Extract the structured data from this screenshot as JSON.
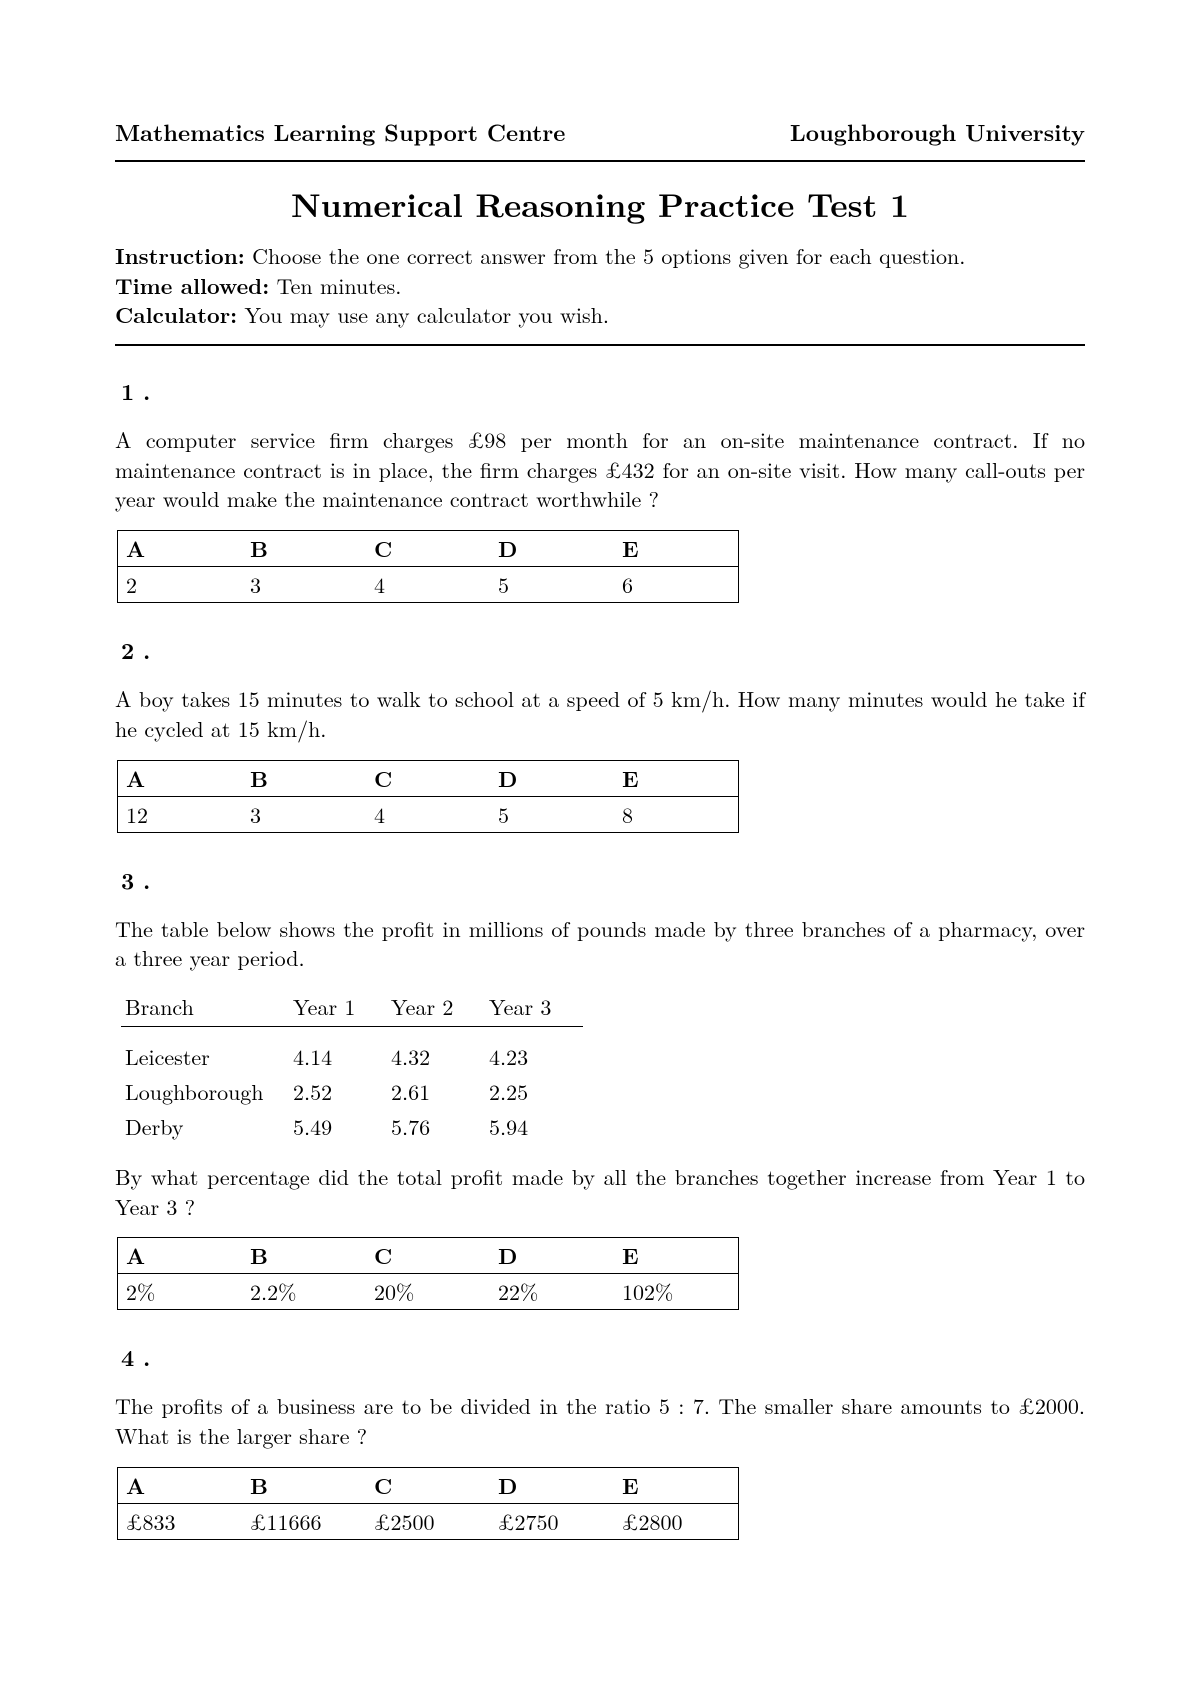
{
  "header": {
    "left": "Mathematics Learning Support Centre",
    "right": "Loughborough University"
  },
  "title": "Numerical Reasoning Practice Test 1",
  "instructions": {
    "instruction_label": "Instruction:",
    "instruction_text": "Choose the one correct answer from the 5 options given for each question.",
    "time_label": "Time allowed:",
    "time_text": "Ten minutes.",
    "calc_label": "Calculator:",
    "calc_text": "You may use any calculator you wish."
  },
  "option_headers": [
    "A",
    "B",
    "C",
    "D",
    "E"
  ],
  "questions": {
    "q1": {
      "number": "1  .",
      "text": "A computer service firm charges £98 per month for an on-site maintenance contract. If no maintenance contract is in place, the firm charges £432 for an on-site visit. How many call-outs per year would make the maintenance contract worthwhile ?",
      "options": [
        "2",
        "3",
        "4",
        "5",
        "6"
      ]
    },
    "q2": {
      "number": "2  .",
      "text": "A boy takes 15 minutes to walk to school at a speed of 5 km/h. How many minutes would he take if he cycled at 15 km/h.",
      "options": [
        "12",
        "3",
        "4",
        "5",
        "8"
      ]
    },
    "q3": {
      "number": "3  .",
      "text_a": "The table below shows the profit in millions of pounds made by three branches of a pharmacy, over a three year period.",
      "text_b": "By what percentage did the total profit made by all the branches together increase from Year 1 to Year 3 ?",
      "data_table": {
        "columns": [
          "Branch",
          "Year 1",
          "Year 2",
          "Year 3"
        ],
        "rows": [
          [
            "Leicester",
            "4.14",
            "4.32",
            "4.23"
          ],
          [
            "Loughborough",
            "2.52",
            "2.61",
            "2.25"
          ],
          [
            "Derby",
            "5.49",
            "5.76",
            "5.94"
          ]
        ]
      },
      "options": [
        "2%",
        "2.2%",
        "20%",
        "22%",
        "102%"
      ]
    },
    "q4": {
      "number": "4  .",
      "text": "The profits of a business are to be divided in the ratio 5 : 7. The smaller share amounts to £2000. What is the larger share ?",
      "options": [
        "£833",
        "£11666",
        "£2500",
        "£2750",
        "£2800"
      ]
    }
  }
}
